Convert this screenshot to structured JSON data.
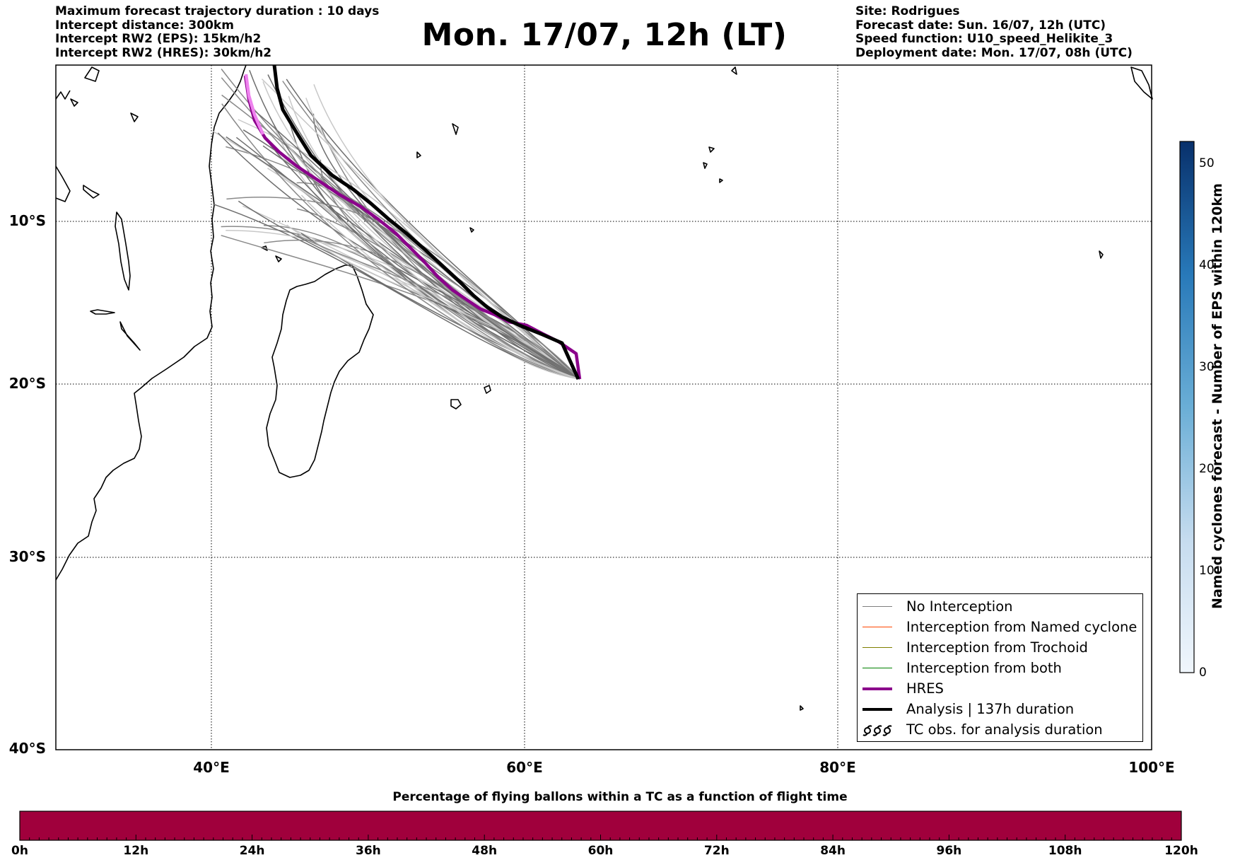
{
  "header_left": [
    "Maximum forecast trajectory duration : 10 days",
    "Intercept distance: 300km",
    "Intercept RW2 (EPS):  15km/h2",
    "Intercept RW2 (HRES): 30km/h2"
  ],
  "header_right": [
    "Site: Rodrigues",
    "Forecast date: Sun. 16/07, 12h (UTC)",
    "Speed function: U10_speed_Helikite_3",
    "Deployment date: Mon. 17/07, 08h (UTC)"
  ],
  "title": "Mon. 17/07, 12h (LT)",
  "map": {
    "lat_labels": [
      "10°S",
      "20°S",
      "30°S",
      "40°S"
    ],
    "lon_labels": [
      "40°E",
      "60°E",
      "80°E",
      "100°E"
    ]
  },
  "legend": [
    {
      "label": "No Interception",
      "color": "#808080",
      "kind": "thin"
    },
    {
      "label": "Interception from Named cyclone",
      "color": "#ff4500",
      "kind": "thin"
    },
    {
      "label": "Interception from Trochoid",
      "color": "#808000",
      "kind": "thin"
    },
    {
      "label": "Interception from both",
      "color": "#008000",
      "kind": "thin"
    },
    {
      "label": "HRES",
      "color": "#8b008b",
      "kind": "thick"
    },
    {
      "label": "Analysis | 137h duration",
      "color": "#000000",
      "kind": "thick"
    },
    {
      "label": "TC obs. for analysis duration",
      "color": "#000000",
      "kind": "symbol"
    }
  ],
  "colorbar": {
    "label": "Named cyclones forecast - Number of EPS within 120km",
    "ticks": [
      "0",
      "10",
      "20",
      "30",
      "40",
      "50"
    ]
  },
  "timebar": {
    "title": "Percentage of flying ballons within a TC as a function of flight time",
    "ticks": [
      "0h",
      "12h",
      "24h",
      "36h",
      "48h",
      "60h",
      "72h",
      "84h",
      "96h",
      "108h",
      "120h"
    ],
    "color": "#a0003c"
  }
}
